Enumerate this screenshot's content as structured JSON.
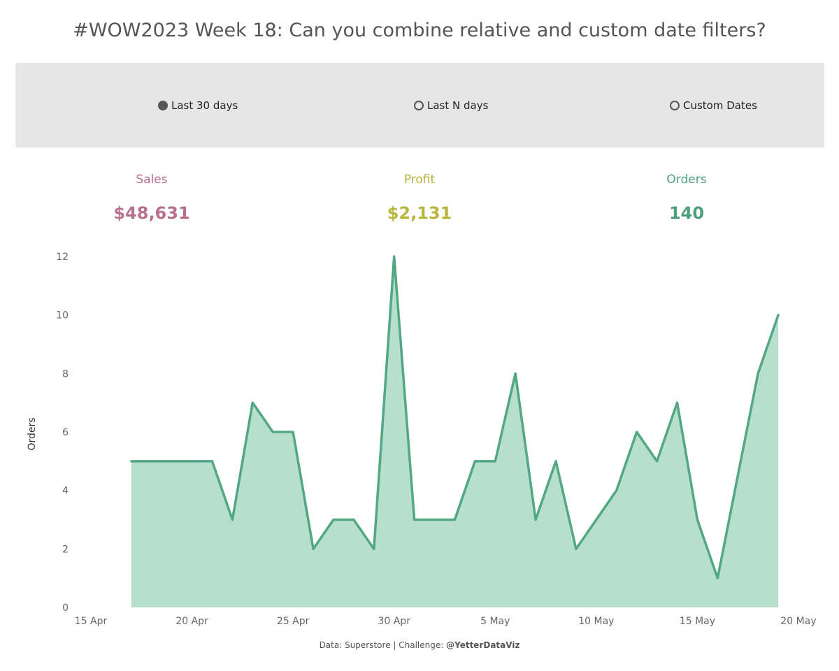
{
  "title": "#WOW2023 Week 18: Can you combine relative and custom date filters?",
  "filters": {
    "options": [
      "Last 30 days",
      "Last N days",
      "Custom Dates"
    ],
    "selected": "Last 30 days"
  },
  "kpis": {
    "sales": {
      "label": "Sales",
      "value": "$48,631",
      "color": "#b9708f"
    },
    "profit": {
      "label": "Profit",
      "value": "$2,131",
      "color": "#b9b53f"
    },
    "orders": {
      "label": "Orders",
      "value": "140",
      "color": "#4e9f80"
    }
  },
  "chart_data": {
    "type": "area",
    "ylabel": "Orders",
    "xlabel": "",
    "x": [
      "17 Apr",
      "18 Apr",
      "19 Apr",
      "20 Apr",
      "21 Apr",
      "22 Apr",
      "23 Apr",
      "24 Apr",
      "25 Apr",
      "26 Apr",
      "27 Apr",
      "28 Apr",
      "29 Apr",
      "30 Apr",
      "1 May",
      "2 May",
      "3 May",
      "4 May",
      "5 May",
      "6 May",
      "7 May",
      "8 May",
      "9 May",
      "10 May",
      "11 May",
      "12 May",
      "13 May",
      "14 May",
      "15 May",
      "16 May",
      "17 May",
      "18 May",
      "19 May"
    ],
    "values": [
      5,
      5,
      5,
      5,
      5,
      3,
      7,
      6,
      6,
      2,
      3,
      3,
      2,
      12,
      3,
      3,
      3,
      5,
      5,
      8,
      3,
      5,
      2,
      3,
      4,
      6,
      5,
      7,
      3,
      1,
      4.5,
      8,
      10
    ],
    "x_range": [
      "15 Apr",
      "20 May"
    ],
    "xticks": [
      "15 Apr",
      "20 Apr",
      "25 Apr",
      "30 Apr",
      "5 May",
      "10 May",
      "15 May",
      "20 May"
    ],
    "ylim": [
      0,
      12
    ],
    "yticks": [
      0,
      2,
      4,
      6,
      8,
      10,
      12
    ],
    "line_color": "#52a882",
    "fill_color": "#b8dfcd",
    "grid": false
  },
  "footer": {
    "text": "Data: Superstore | Challenge: ",
    "handle": "@YetterDataViz"
  }
}
